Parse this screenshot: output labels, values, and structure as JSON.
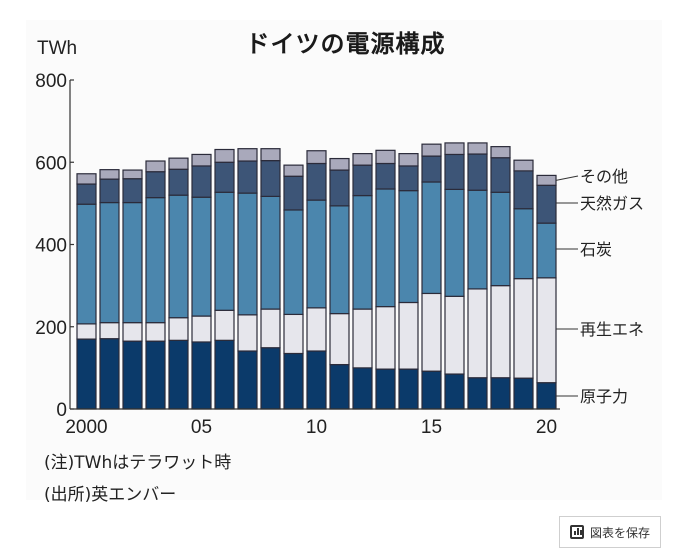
{
  "chart_data": {
    "type": "bar",
    "stacked": true,
    "title": "ドイツの電源構成",
    "ylabel": "TWh",
    "xlabel": "",
    "ylim": [
      0,
      800
    ],
    "yticks": [
      0,
      200,
      400,
      600,
      800
    ],
    "xticks": [
      {
        "year": 2000,
        "label": "2000"
      },
      {
        "year": 2005,
        "label": "05"
      },
      {
        "year": 2010,
        "label": "10"
      },
      {
        "year": 2015,
        "label": "15"
      },
      {
        "year": 2020,
        "label": "20"
      }
    ],
    "categories": [
      2000,
      2001,
      2002,
      2003,
      2004,
      2005,
      2006,
      2007,
      2008,
      2009,
      2010,
      2011,
      2012,
      2013,
      2014,
      2015,
      2016,
      2017,
      2018,
      2019,
      2020
    ],
    "series": [
      {
        "name": "原子力",
        "color": "#0b3a6a",
        "values": [
          170,
          171,
          165,
          165,
          167,
          163,
          167,
          141,
          149,
          135,
          141,
          108,
          100,
          97,
          97,
          92,
          85,
          76,
          76,
          75,
          64
        ]
      },
      {
        "name": "再生エネ",
        "color": "#e6e6ec",
        "values": [
          37,
          39,
          45,
          45,
          55,
          63,
          73,
          88,
          94,
          95,
          105,
          124,
          143,
          152,
          162,
          189,
          189,
          216,
          224,
          242,
          255
        ]
      },
      {
        "name": "石炭",
        "color": "#4b86ad",
        "values": [
          291,
          292,
          292,
          304,
          298,
          289,
          287,
          296,
          274,
          254,
          262,
          262,
          276,
          286,
          272,
          271,
          260,
          240,
          227,
          170,
          133
        ]
      },
      {
        "name": "天然ガス",
        "color": "#3d5577",
        "values": [
          49,
          57,
          58,
          63,
          63,
          76,
          73,
          78,
          87,
          82,
          89,
          87,
          74,
          62,
          60,
          63,
          85,
          88,
          84,
          92,
          92
        ]
      },
      {
        "name": "その他",
        "color": "#a9a9bb",
        "values": [
          25,
          23,
          21,
          26,
          27,
          28,
          31,
          30,
          29,
          27,
          31,
          28,
          28,
          32,
          30,
          29,
          28,
          27,
          27,
          26,
          24
        ]
      }
    ],
    "legend_placement": "right (labels pointing to last bar)"
  },
  "notes": {
    "note": "(注)TWhはテラワット時",
    "source": "(出所)英エンバー"
  },
  "save_button": {
    "label": "図表を保存",
    "icon": "bar-chart-icon"
  }
}
